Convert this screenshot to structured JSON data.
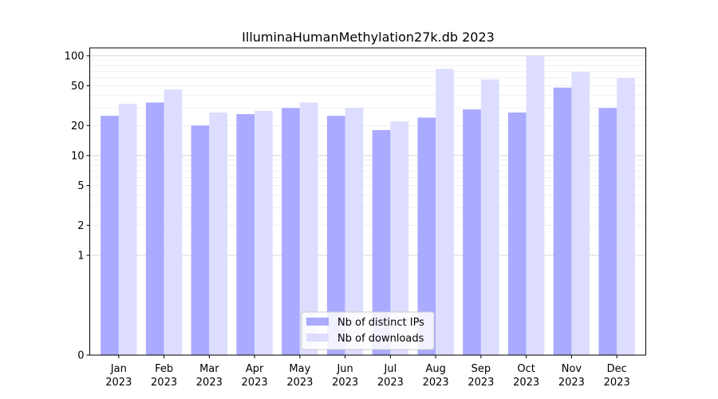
{
  "chart_data": {
    "type": "bar",
    "title": "IlluminaHumanMethylation27k.db 2023",
    "xlabel": "",
    "ylabel": "",
    "yscale": "symlog",
    "ylim": [
      0,
      120
    ],
    "yticks": [
      0,
      1,
      2,
      5,
      10,
      20,
      50,
      100
    ],
    "ytick_labels": [
      "0",
      "1",
      "2",
      "5",
      "10",
      "20",
      "50",
      "100"
    ],
    "grid": true,
    "legend_position": "bottom-center",
    "categories": [
      "Jan\n2023",
      "Feb\n2023",
      "Mar\n2023",
      "Apr\n2023",
      "May\n2023",
      "Jun\n2023",
      "Jul\n2023",
      "Aug\n2023",
      "Sep\n2023",
      "Oct\n2023",
      "Nov\n2023",
      "Dec\n2023"
    ],
    "category_lines": [
      [
        "Jan",
        "2023"
      ],
      [
        "Feb",
        "2023"
      ],
      [
        "Mar",
        "2023"
      ],
      [
        "Apr",
        "2023"
      ],
      [
        "May",
        "2023"
      ],
      [
        "Jun",
        "2023"
      ],
      [
        "Jul",
        "2023"
      ],
      [
        "Aug",
        "2023"
      ],
      [
        "Sep",
        "2023"
      ],
      [
        "Oct",
        "2023"
      ],
      [
        "Nov",
        "2023"
      ],
      [
        "Dec",
        "2023"
      ]
    ],
    "series": [
      {
        "name": "Nb of distinct IPs",
        "color": "#aaaaff",
        "values": [
          25,
          34,
          20,
          26,
          30,
          25,
          18,
          24,
          29,
          27,
          48,
          30
        ]
      },
      {
        "name": "Nb of downloads",
        "color": "#ddddff",
        "values": [
          33,
          46,
          27,
          28,
          34,
          30,
          22,
          74,
          58,
          100,
          69,
          60
        ]
      }
    ]
  }
}
